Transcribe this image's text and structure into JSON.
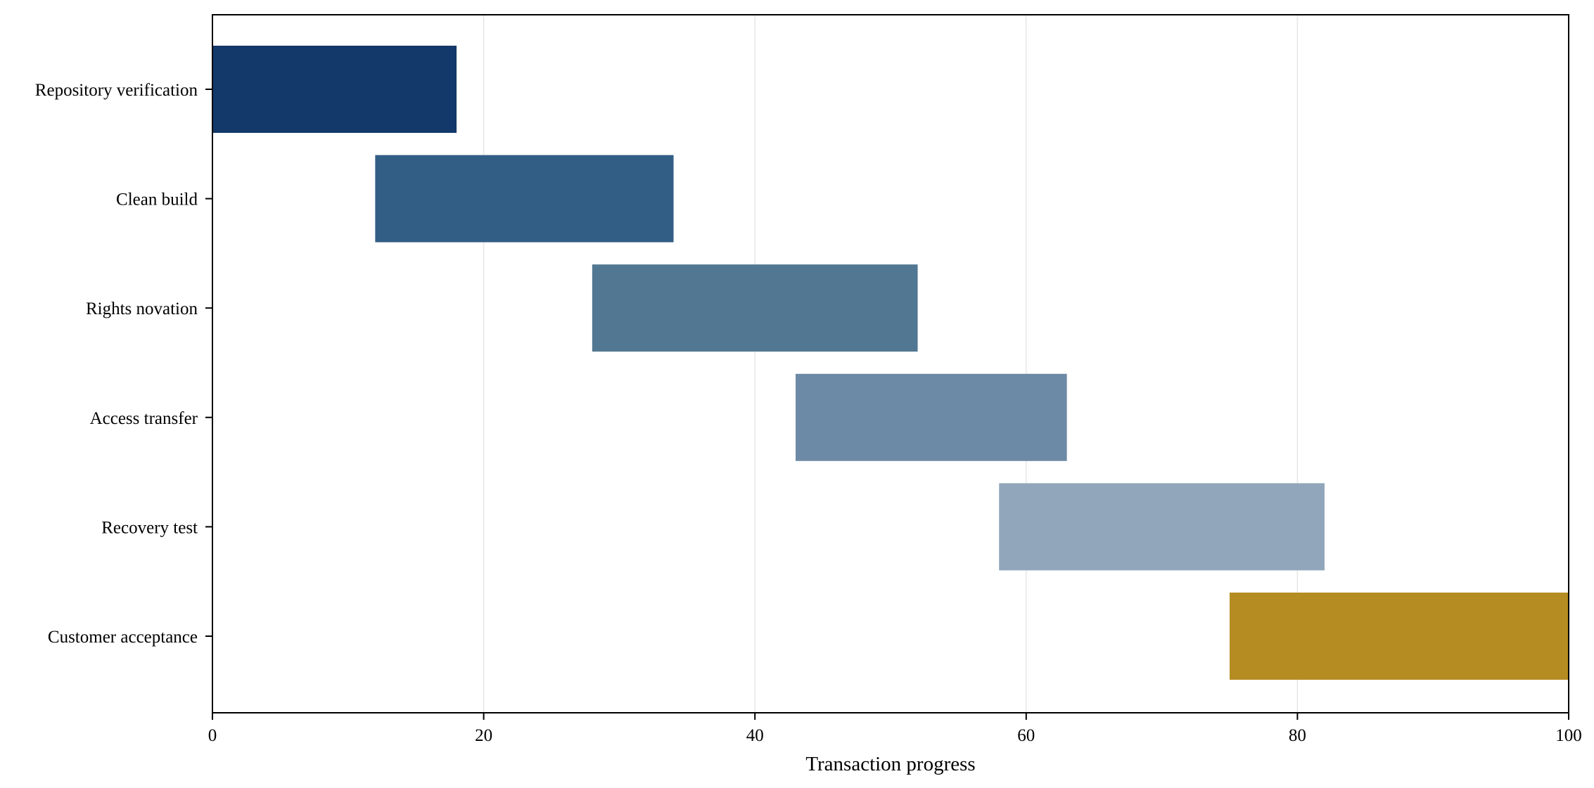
{
  "chart_data": {
    "type": "bar",
    "orientation": "horizontal-range",
    "xlabel": "Transaction progress",
    "ylabel": "",
    "xlim": [
      0,
      100
    ],
    "xticks": [
      0,
      20,
      40,
      60,
      80,
      100
    ],
    "grid": "vertical",
    "legend": "none",
    "tasks": [
      {
        "label": "Repository verification",
        "start": 0,
        "end": 18,
        "color": "#13386A"
      },
      {
        "label": "Clean build",
        "start": 12,
        "end": 34,
        "color": "#325D85"
      },
      {
        "label": "Rights novation",
        "start": 28,
        "end": 52,
        "color": "#527792"
      },
      {
        "label": "Access transfer",
        "start": 43,
        "end": 63,
        "color": "#6C8AA5"
      },
      {
        "label": "Recovery test",
        "start": 58,
        "end": 82,
        "color": "#91A6BA"
      },
      {
        "label": "Customer acceptance",
        "start": 75,
        "end": 100,
        "color": "#B58C22"
      }
    ]
  }
}
